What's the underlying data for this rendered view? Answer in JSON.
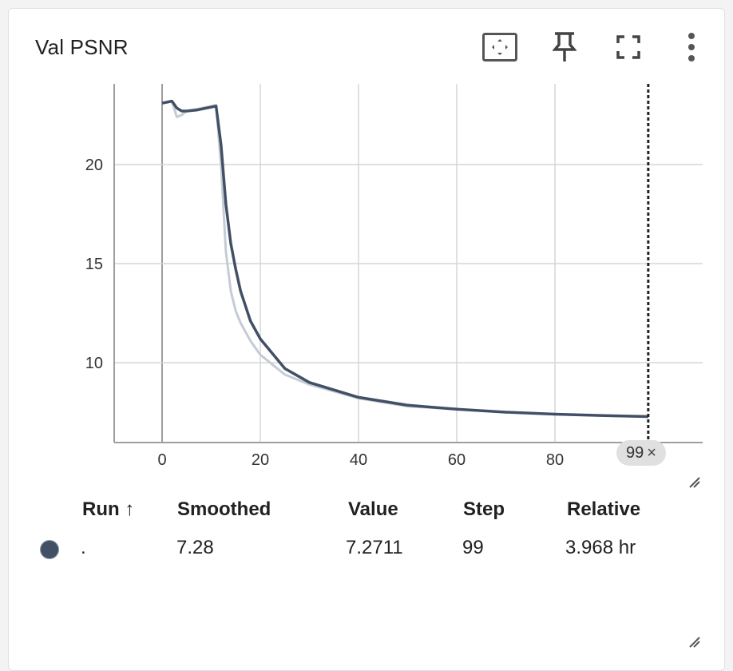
{
  "card": {
    "title": "Val PSNR",
    "toolbar": {
      "fit_icon": "fit-domain-icon",
      "pin_icon": "pin-icon",
      "fullscreen_icon": "fullscreen-icon",
      "more_icon": "more-vert-icon"
    }
  },
  "chart_data": {
    "type": "line",
    "title": "",
    "xlabel": "",
    "ylabel": "",
    "xlim": [
      -10,
      110
    ],
    "ylim": [
      6.0,
      24.0
    ],
    "x_ticks": [
      "0",
      "20",
      "40",
      "60",
      "80"
    ],
    "y_ticks": [
      "10",
      "15",
      "20"
    ],
    "grid": true,
    "series": [
      {
        "role": "raw",
        "color": "#c5ccd6",
        "x": [
          0,
          2,
          3,
          4,
          5,
          7,
          9,
          11,
          12,
          13,
          14,
          15,
          16,
          18,
          20,
          25,
          30,
          40,
          50,
          60,
          70,
          80,
          90,
          99
        ],
        "y": [
          23.1,
          23.2,
          22.4,
          22.5,
          22.7,
          22.8,
          22.9,
          23.0,
          20.0,
          15.6,
          13.6,
          12.6,
          12.0,
          11.1,
          10.4,
          9.4,
          8.9,
          8.2,
          7.8,
          7.65,
          7.5,
          7.4,
          7.33,
          7.27
        ]
      },
      {
        "role": "smoothed",
        "color": "#425066",
        "x": [
          0,
          2,
          3,
          4,
          5,
          7,
          9,
          11,
          12,
          13,
          14,
          15,
          16,
          18,
          20,
          25,
          30,
          40,
          50,
          60,
          70,
          80,
          90,
          99
        ],
        "y": [
          23.1,
          23.2,
          22.85,
          22.7,
          22.7,
          22.75,
          22.85,
          22.95,
          21.0,
          18.0,
          16.0,
          14.7,
          13.6,
          12.1,
          11.2,
          9.7,
          9.0,
          8.25,
          7.85,
          7.65,
          7.5,
          7.4,
          7.33,
          7.28
        ]
      }
    ],
    "cursor_step": 99
  },
  "step_chip": {
    "label": "99",
    "close": "×"
  },
  "table": {
    "headers": {
      "run": "Run ↑",
      "smoothed": "Smoothed",
      "value": "Value",
      "step": "Step",
      "relative": "Relative"
    },
    "rows": [
      {
        "color": "#425066",
        "run": ".",
        "smoothed": "7.28",
        "value": "7.2711",
        "step": "99",
        "relative": "3.968 hr"
      }
    ]
  }
}
